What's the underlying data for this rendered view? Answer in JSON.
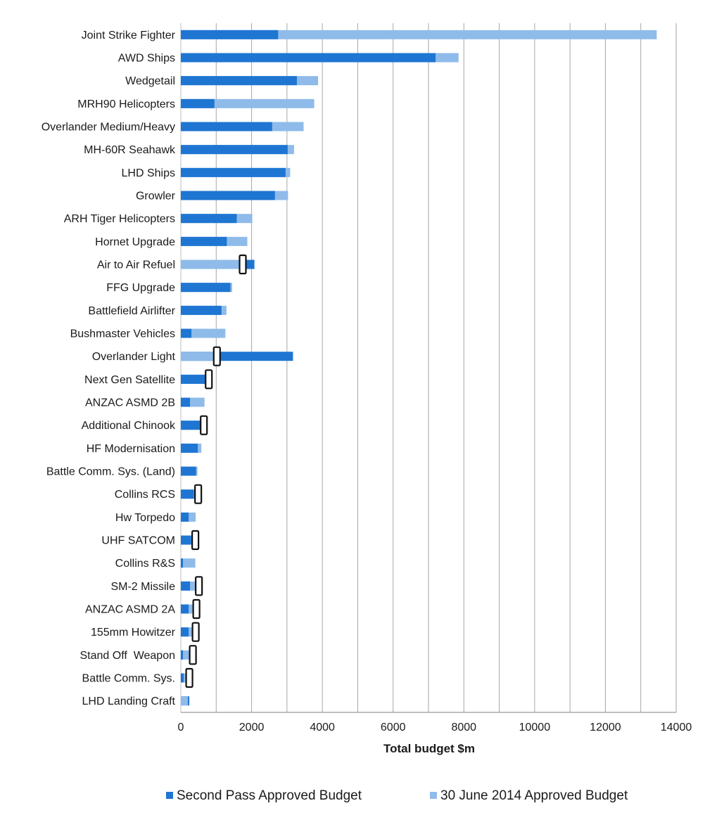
{
  "chart_data": {
    "type": "bar",
    "orientation": "horizontal",
    "xlabel": "Total budget $m",
    "xlim": [
      0,
      14000
    ],
    "xticks": [
      0,
      2000,
      4000,
      6000,
      8000,
      10000,
      12000,
      14000
    ],
    "grid": "vertical",
    "legend_position": "bottom",
    "colors": {
      "second_pass": "#1f76d2",
      "june_2014": "#8fbbea",
      "gridline": "#a6a6a6",
      "marker_stroke": "#111111"
    },
    "categories": [
      "Joint Strike Fighter",
      "AWD Ships",
      "Wedgetail",
      "MRH90 Helicopters",
      "Overlander Medium/Heavy",
      "MH-60R Seahawk",
      "LHD Ships",
      "Growler",
      "ARH Tiger Helicopters",
      "Hornet Upgrade",
      "Air to Air Refuel",
      "FFG Upgrade",
      "Battlefield Airlifter",
      "Bushmaster Vehicles",
      "Overlander Light",
      "Next Gen Satellite",
      "ANZAC ASMD 2B",
      "Additional Chinook",
      "HF Modernisation",
      "Battle Comm. Sys. (Land)",
      "Collins RCS",
      "Hw Torpedo",
      "UHF SATCOM",
      "Collins R&S",
      "SM-2 Missile",
      "ANZAC ASMD 2A",
      "155mm Howitzer",
      "Stand Off  Weapon",
      "Battle Comm. Sys.",
      "LHD Landing Craft"
    ],
    "series": [
      {
        "name": "Second Pass Approved Budget",
        "values": [
          2750,
          7200,
          3280,
          950,
          2580,
          3020,
          2960,
          2660,
          1580,
          1300,
          2080,
          1400,
          1150,
          300,
          3170,
          700,
          260,
          560,
          480,
          430,
          370,
          220,
          290,
          60,
          260,
          220,
          220,
          60,
          80,
          240
        ]
      },
      {
        "name": "30 June 2014 Approved Budget",
        "values": [
          13450,
          7850,
          3880,
          3770,
          3470,
          3200,
          3090,
          3030,
          2020,
          1880,
          1750,
          1450,
          1290,
          1260,
          1020,
          790,
          670,
          650,
          580,
          470,
          490,
          420,
          410,
          410,
          510,
          440,
          420,
          340,
          240,
          200
        ]
      }
    ],
    "marker_rows": [
      "Air to Air Refuel",
      "Overlander Light",
      "Next Gen Satellite",
      "Additional Chinook",
      "Collins RCS",
      "UHF SATCOM",
      "SM-2 Missile",
      "ANZAC ASMD 2A",
      "155mm Howitzer",
      "Stand Off  Weapon",
      "Battle Comm. Sys."
    ]
  }
}
